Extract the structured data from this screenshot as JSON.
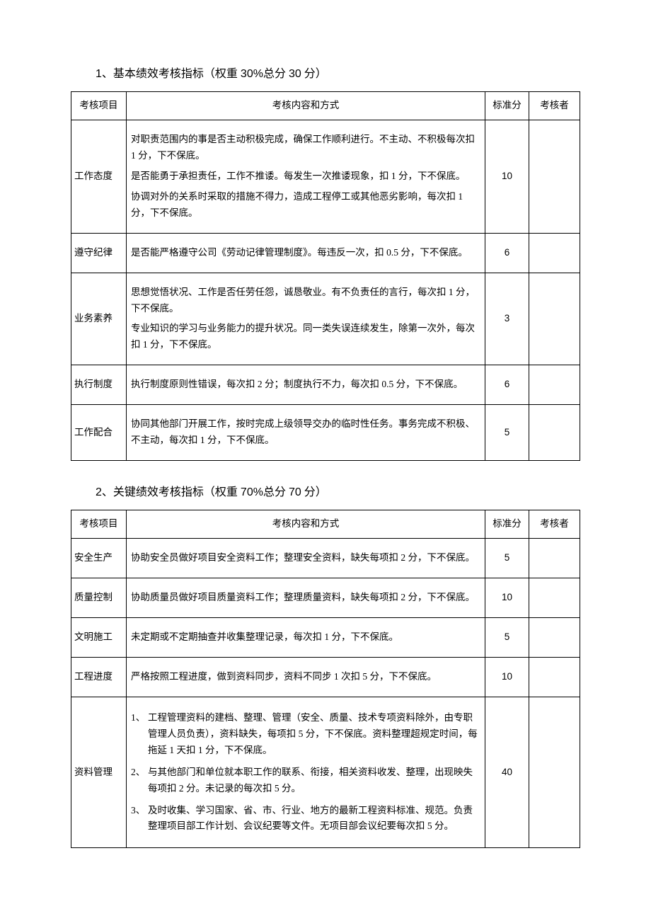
{
  "section1": {
    "number": "1",
    "title_prefix": "、基本绩效考核指标（权重 ",
    "percent": "30%",
    "title_mid": "总分 ",
    "points": "30",
    "title_suffix": " 分）",
    "headers": {
      "col1": "考核项目",
      "col2": "考核内容和方式",
      "col3": "标准分",
      "col4": "考核者"
    },
    "rows": [
      {
        "category": "工作态度",
        "content": [
          "对职责范围内的事是否主动积极完成，确保工作顺利进行。不主动、不积极每次扣 1 分，下不保底。",
          "是否能勇于承担责任，工作不推诿。每发生一次推诿现象，扣 1 分，下不保底。",
          "协调对外的关系时采取的措施不得力，造成工程停工或其他恶劣影响，每次扣 1 分，下不保底。"
        ],
        "score": "10",
        "examiner": ""
      },
      {
        "category": "遵守纪律",
        "content": [
          "是否能严格遵守公司《劳动记律管理制度》。每违反一次，扣 0.5 分，下不保底。"
        ],
        "score": "6",
        "examiner": ""
      },
      {
        "category": "业务素养",
        "content": [
          "思想觉悟状况、工作是否任劳任怨，诚恳敬业。有不负责任的言行，每次扣 1 分，下不保底。",
          "专业知识的学习与业务能力的提升状况。同一类失误连续发生，除第一次外，每次扣 1 分，下不保底。"
        ],
        "score": "3",
        "examiner": ""
      },
      {
        "category": "执行制度",
        "content": [
          "执行制度原则性错误，每次扣 2 分；制度执行不力，每次扣 0.5 分，下不保底。"
        ],
        "score": "6",
        "examiner": ""
      },
      {
        "category": "工作配合",
        "content": [
          "协同其他部门开展工作，按时完成上级领导交办的临时性任务。事务完成不积极、不主动，每次扣 1 分，下不保底。"
        ],
        "score": "5",
        "examiner": ""
      }
    ]
  },
  "section2": {
    "number": "2",
    "title_prefix": "、关键绩效考核指标（权重 ",
    "percent": "70%",
    "title_mid": "总分 ",
    "points": "70",
    "title_suffix": " 分）",
    "headers": {
      "col1": "考核项目",
      "col2": "考核内容和方式",
      "col3": "标准分",
      "col4": "考核者"
    },
    "rows": [
      {
        "category": "安全生产",
        "content": [
          "协助安全员做好项目安全资料工作；整理安全资料，缺失每项扣 2 分，下不保底。"
        ],
        "score": "5",
        "examiner": ""
      },
      {
        "category": "质量控制",
        "content": [
          "协助质量员做好项目质量资料工作；整理质量资料，缺失每项扣 2 分，下不保底。"
        ],
        "score": "10",
        "examiner": ""
      },
      {
        "category": "文明施工",
        "content": [
          "未定期或不定期抽查并收集整理记录，每次扣 1 分，下不保底。"
        ],
        "score": "5",
        "examiner": ""
      },
      {
        "category": "工程进度",
        "content": [
          "严格按照工程进度，做到资料同步，资料不同步 1 次扣 5 分，下不保底。"
        ],
        "score": "10",
        "examiner": ""
      },
      {
        "category": "资料管理",
        "ordered": [
          {
            "num": "1、",
            "text": "工程管理资料的建档、整理、管理（安全、质量、技术专项资料除外，由专职管理人员负责），资料缺失，每项扣 5 分，下不保底。资料整理超规定时间，每拖延 1 天扣 1 分，下不保底。"
          },
          {
            "num": "2、",
            "text": "与其他部门和单位就本职工作的联系、衔接，相关资料收发、整理，出现映失每项扣 2 分。未记录的每次扣 5 分。"
          },
          {
            "num": "3、",
            "text": "及时收集、学习国家、省、市、行业、地方的最新工程资料标准、规范。负责整理项目部工作计划、会议纪要等文件。无项目部会议纪要每次扣 5 分。"
          }
        ],
        "score": "40",
        "examiner": ""
      }
    ]
  }
}
